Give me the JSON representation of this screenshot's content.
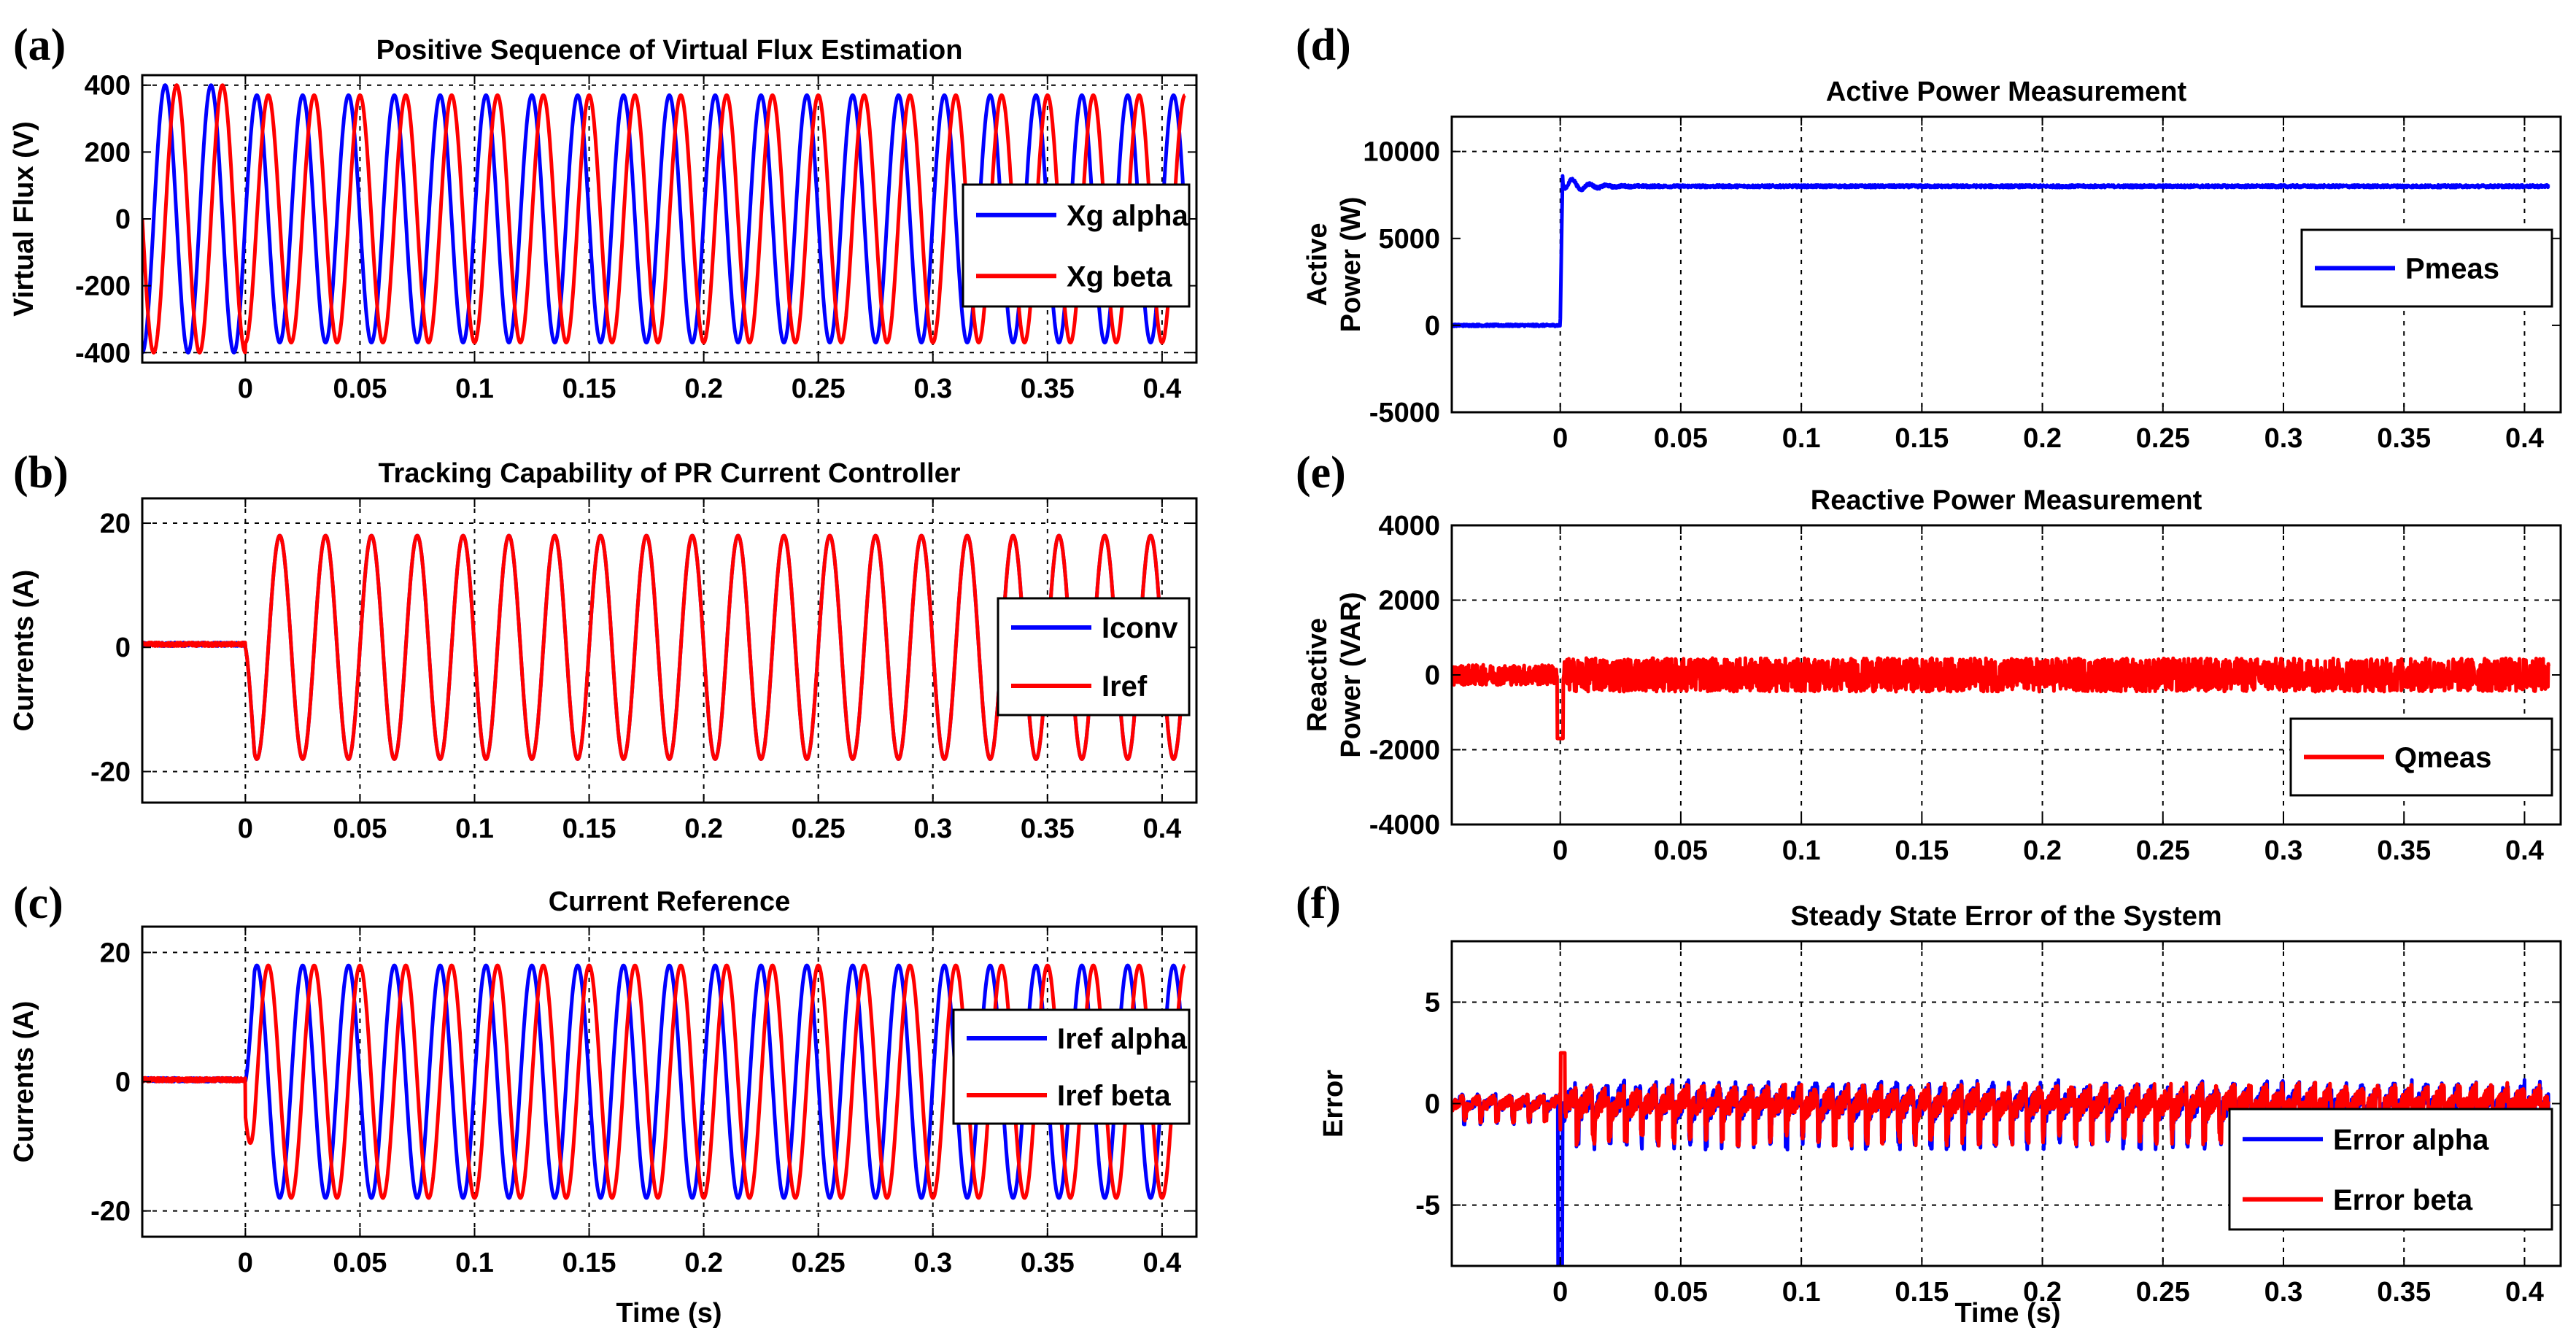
{
  "figure": {
    "background": "#ffffff",
    "blue": "#0000ff",
    "red": "#ff0000"
  },
  "chart_data": [
    {
      "panel_label": "(a)",
      "type": "line",
      "title": "Positive Sequence of Virtual Flux Estimation",
      "xlabel": "",
      "ylabel_lines": [
        "Virtual Flux (V)"
      ],
      "xlim": [
        -0.045,
        0.415
      ],
      "ylim": [
        -430,
        430
      ],
      "xticks": [
        0,
        0.05,
        0.1,
        0.15,
        0.2,
        0.25,
        0.3,
        0.35,
        0.4
      ],
      "xtick_labels": [
        "0",
        "0.05",
        "0.1",
        "0.15",
        "0.2",
        "0.25",
        "0.3",
        "0.35",
        "0.4"
      ],
      "yticks": [
        -400,
        -200,
        0,
        200,
        400
      ],
      "ytick_labels": [
        "-400",
        "-200",
        "0",
        "200",
        "400"
      ],
      "grid_y": [
        -400,
        400
      ],
      "legend": {
        "position": "right",
        "entries": [
          "Xg alpha",
          "Xg beta"
        ]
      },
      "series": [
        {
          "name": "Xg alpha",
          "color": "#0000ff",
          "kind": "sine",
          "frequency_hz": 50,
          "amplitude_before": 400,
          "amplitude_after": 370,
          "phase_deg": 0,
          "t_start": -0.045,
          "t_end": 0.41
        },
        {
          "name": "Xg beta",
          "color": "#ff0000",
          "kind": "sine",
          "frequency_hz": 50,
          "amplitude_before": 400,
          "amplitude_after": 370,
          "phase_deg": -90,
          "t_start": -0.045,
          "t_end": 0.41
        }
      ]
    },
    {
      "panel_label": "(b)",
      "type": "line",
      "title": "Tracking Capability of PR Current Controller",
      "xlabel": "",
      "ylabel_lines": [
        "Currents (A)"
      ],
      "xlim": [
        -0.045,
        0.415
      ],
      "ylim": [
        -25,
        24
      ],
      "xticks": [
        0,
        0.05,
        0.1,
        0.15,
        0.2,
        0.25,
        0.3,
        0.35,
        0.4
      ],
      "xtick_labels": [
        "0",
        "0.05",
        "0.1",
        "0.15",
        "0.2",
        "0.25",
        "0.3",
        "0.35",
        "0.4"
      ],
      "yticks": [
        -20,
        0,
        20
      ],
      "ytick_labels": [
        "-20",
        "0",
        "20"
      ],
      "grid_y": [
        -20,
        20
      ],
      "legend": {
        "position": "right",
        "entries": [
          "Iconv",
          "Iref"
        ]
      },
      "series": [
        {
          "name": "Iconv",
          "color": "#0000ff",
          "kind": "step_sine",
          "frequency_hz": 50,
          "amplitude": 18,
          "phase_deg": 180,
          "step_time": 0,
          "pre_value": 0.5,
          "t_start": -0.045,
          "t_end": 0.41
        },
        {
          "name": "Iref",
          "color": "#ff0000",
          "kind": "step_sine",
          "frequency_hz": 50,
          "amplitude": 18,
          "phase_deg": 180,
          "step_time": 0,
          "pre_value": 0.5,
          "t_start": -0.045,
          "t_end": 0.41
        }
      ]
    },
    {
      "panel_label": "(c)",
      "type": "line",
      "title": "Current Reference",
      "xlabel": "Time (s)",
      "ylabel_lines": [
        "Currents (A)"
      ],
      "xlim": [
        -0.045,
        0.415
      ],
      "ylim": [
        -24,
        24
      ],
      "xticks": [
        0,
        0.05,
        0.1,
        0.15,
        0.2,
        0.25,
        0.3,
        0.35,
        0.4
      ],
      "xtick_labels": [
        "0",
        "0.05",
        "0.1",
        "0.15",
        "0.2",
        "0.25",
        "0.3",
        "0.35",
        "0.4"
      ],
      "yticks": [
        -20,
        0,
        20
      ],
      "ytick_labels": [
        "-20",
        "0",
        "20"
      ],
      "grid_y": [
        -20,
        20
      ],
      "legend": {
        "position": "right",
        "entries": [
          "Iref alpha",
          "Iref beta"
        ]
      },
      "series": [
        {
          "name": "Iref alpha",
          "color": "#0000ff",
          "kind": "step_sine",
          "frequency_hz": 50,
          "amplitude": 18,
          "phase_deg": 0,
          "step_time": 0,
          "pre_value": 0.3,
          "t_start": -0.045,
          "t_end": 0.41
        },
        {
          "name": "Iref beta",
          "color": "#ff0000",
          "kind": "step_sine",
          "frequency_hz": 50,
          "amplitude": 18,
          "phase_deg": -90,
          "step_time": 0,
          "pre_value": 0.3,
          "t_start": -0.045,
          "t_end": 0.41
        }
      ]
    },
    {
      "panel_label": "(d)",
      "type": "line",
      "title": "Active Power Measurement",
      "xlabel": "",
      "ylabel_lines": [
        "Active",
        "Power (W)"
      ],
      "xlim": [
        -0.045,
        0.415
      ],
      "ylim": [
        -5000,
        12000
      ],
      "xticks": [
        0,
        0.05,
        0.1,
        0.15,
        0.2,
        0.25,
        0.3,
        0.35,
        0.4
      ],
      "xtick_labels": [
        "0",
        "0.05",
        "0.1",
        "0.15",
        "0.2",
        "0.25",
        "0.3",
        "0.35",
        "0.4"
      ],
      "yticks": [
        -5000,
        0,
        5000,
        10000
      ],
      "ytick_labels": [
        "-5000",
        "0",
        "5000",
        "10000"
      ],
      "grid_y": [
        10000
      ],
      "legend": {
        "position": "right",
        "entries": [
          "Pmeas"
        ]
      },
      "series": [
        {
          "name": "Pmeas",
          "color": "#0000ff",
          "kind": "power_step",
          "pre_value": 0,
          "final_value": 8000,
          "peak_value": 9000,
          "ripple": 150,
          "step_time": 0,
          "t_start": -0.045,
          "t_end": 0.41
        }
      ]
    },
    {
      "panel_label": "(e)",
      "type": "line",
      "title": "Reactive Power Measurement",
      "xlabel": "",
      "ylabel_lines": [
        "Reactive",
        "Power (VAR)"
      ],
      "xlim": [
        -0.045,
        0.415
      ],
      "ylim": [
        -4000,
        4000
      ],
      "xticks": [
        0,
        0.05,
        0.1,
        0.15,
        0.2,
        0.25,
        0.3,
        0.35,
        0.4
      ],
      "xtick_labels": [
        "0",
        "0.05",
        "0.1",
        "0.15",
        "0.2",
        "0.25",
        "0.3",
        "0.35",
        "0.4"
      ],
      "yticks": [
        -4000,
        -2000,
        0,
        2000,
        4000
      ],
      "ytick_labels": [
        "-4000",
        "-2000",
        "0",
        "2000",
        "4000"
      ],
      "grid_y": [
        -2000,
        2000
      ],
      "legend": {
        "position": "right",
        "entries": [
          "Qmeas"
        ]
      },
      "series": [
        {
          "name": "Qmeas",
          "color": "#ff0000",
          "kind": "noise",
          "amplitude": 450,
          "spike_value": -1700,
          "spike_time": 0,
          "t_start": -0.045,
          "t_end": 0.41
        }
      ]
    },
    {
      "panel_label": "(f)",
      "type": "line",
      "title": "Steady State Error of the System",
      "xlabel": "Time (s)",
      "ylabel_lines": [
        "Error"
      ],
      "xlim": [
        -0.045,
        0.415
      ],
      "ylim": [
        -8,
        8
      ],
      "xticks": [
        0,
        0.05,
        0.1,
        0.15,
        0.2,
        0.25,
        0.3,
        0.35,
        0.4
      ],
      "xtick_labels": [
        "0",
        "0.05",
        "0.1",
        "0.15",
        "0.2",
        "0.25",
        "0.3",
        "0.35",
        "0.4"
      ],
      "yticks": [
        -5,
        0,
        5
      ],
      "ytick_labels": [
        "-5",
        "0",
        "5"
      ],
      "grid_y": [
        -5,
        5
      ],
      "legend": {
        "position": "bottom-right",
        "entries": [
          "Error alpha",
          "Error beta"
        ]
      },
      "series": [
        {
          "name": "Error alpha",
          "color": "#0000ff",
          "kind": "sawnoise",
          "amplitude": 1.2,
          "spike_value": -8,
          "spike_time": 0,
          "t_start": -0.045,
          "t_end": 0.41
        },
        {
          "name": "Error beta",
          "color": "#ff0000",
          "kind": "sawnoise",
          "amplitude": 1.1,
          "spike_value": 2.5,
          "spike_time": 0.001,
          "t_start": -0.045,
          "t_end": 0.41
        }
      ]
    }
  ]
}
